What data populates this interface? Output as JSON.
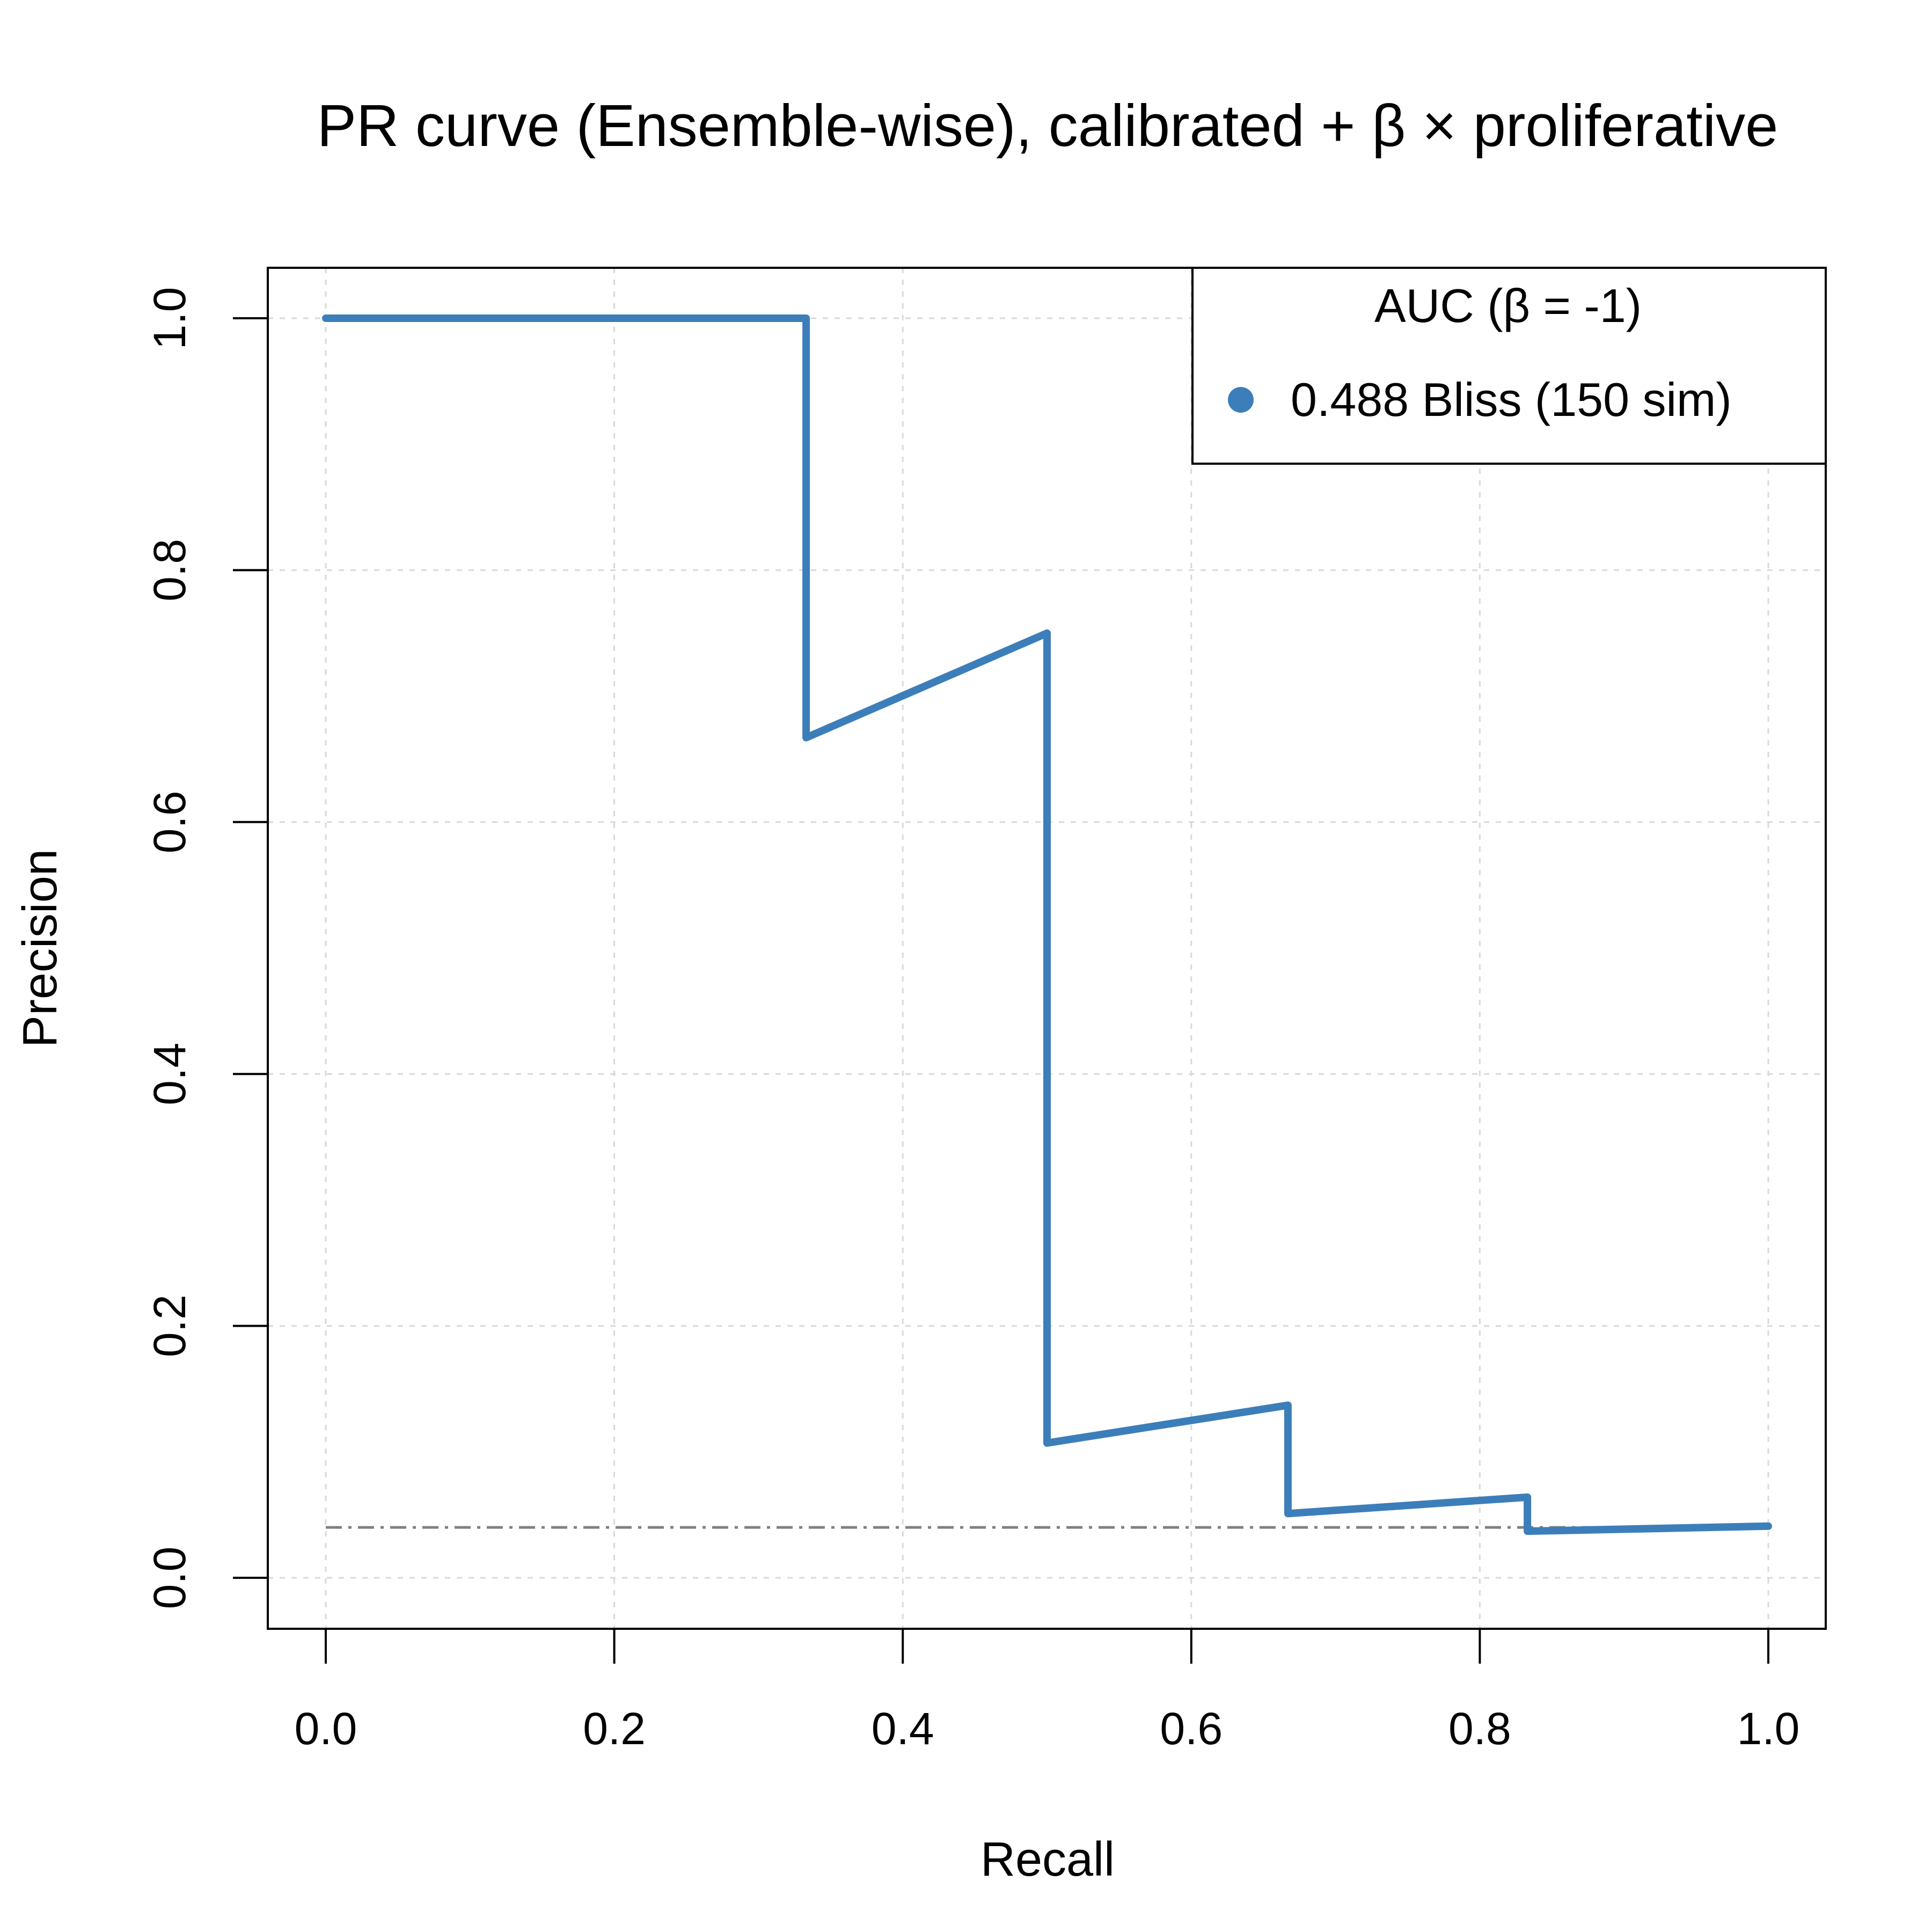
{
  "chart_data": {
    "type": "line",
    "title": "PR curve (Ensemble-wise), calibrated + β × proliferative",
    "xlabel": "Recall",
    "ylabel": "Precision",
    "xlim": [
      0.0,
      1.0
    ],
    "ylim": [
      0.0,
      1.0
    ],
    "xticks": [
      "0.0",
      "0.2",
      "0.4",
      "0.6",
      "0.8",
      "1.0"
    ],
    "yticks": [
      "0.0",
      "0.2",
      "0.4",
      "0.6",
      "0.8",
      "1.0"
    ],
    "grid": true,
    "legend_position": "top-right",
    "legend_title": "AUC (β = -1)",
    "baseline": {
      "y": 0.04,
      "style": "dashed-dot",
      "color": "#808080"
    },
    "series": [
      {
        "name": "0.488 Bliss (150 sim)",
        "color": "#3C7EB9",
        "x": [
          0.0,
          0.333,
          0.333,
          0.5,
          0.5,
          0.667,
          0.667,
          0.833,
          0.833,
          1.0
        ],
        "y": [
          1.0,
          1.0,
          0.667,
          0.75,
          0.107,
          0.137,
          0.051,
          0.064,
          0.037,
          0.041
        ]
      }
    ]
  }
}
